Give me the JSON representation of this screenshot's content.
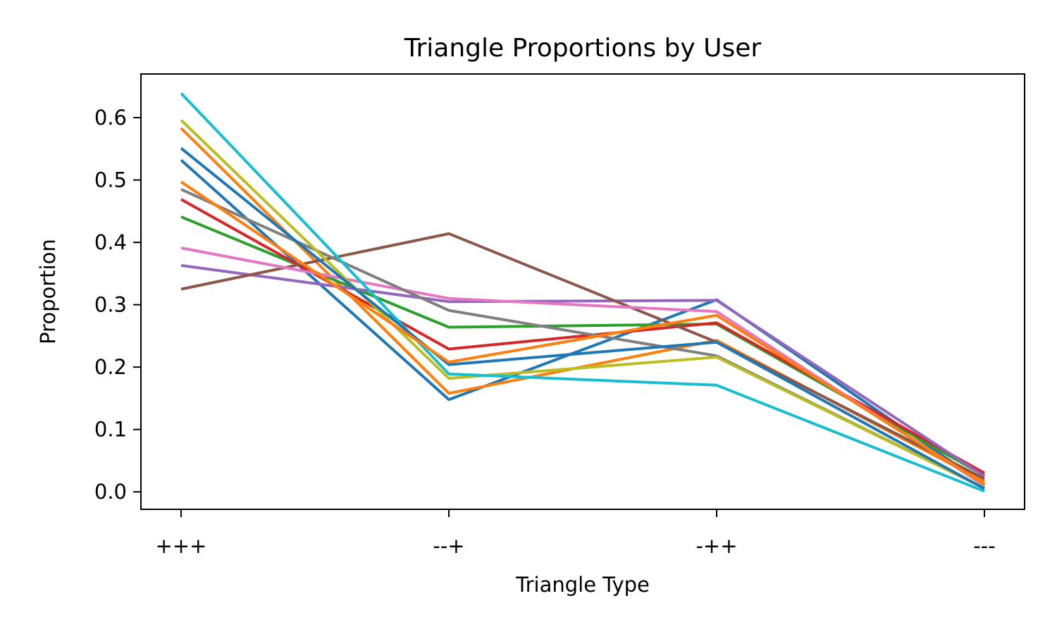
{
  "chart_data": {
    "type": "line",
    "title": "Triangle Proportions by User",
    "xlabel": "Triangle Type",
    "ylabel": "Proportion",
    "categories": [
      "+++",
      "--+",
      "-++",
      "---"
    ],
    "ylim": [
      -0.028,
      0.67
    ],
    "yticks": [
      0.0,
      0.1,
      0.2,
      0.3,
      0.4,
      0.5,
      0.6
    ],
    "ytick_labels": [
      "0.0",
      "0.1",
      "0.2",
      "0.3",
      "0.4",
      "0.5",
      "0.6"
    ],
    "grid": false,
    "legend": "none",
    "series": [
      {
        "color": "#1f77b4",
        "values": [
          0.532,
          0.148,
          0.308,
          0.012
        ]
      },
      {
        "color": "#ff7f0e",
        "values": [
          0.583,
          0.158,
          0.243,
          0.016
        ]
      },
      {
        "color": "#2ca02c",
        "values": [
          0.441,
          0.264,
          0.269,
          0.026
        ]
      },
      {
        "color": "#d62728",
        "values": [
          0.469,
          0.229,
          0.271,
          0.03
        ]
      },
      {
        "color": "#9467bd",
        "values": [
          0.363,
          0.305,
          0.307,
          0.025
        ]
      },
      {
        "color": "#8c564b",
        "values": [
          0.325,
          0.414,
          0.24,
          0.021
        ]
      },
      {
        "color": "#e377c2",
        "values": [
          0.391,
          0.31,
          0.289,
          0.01
        ]
      },
      {
        "color": "#7f7f7f",
        "values": [
          0.485,
          0.291,
          0.218,
          0.006
        ]
      },
      {
        "color": "#bcbd22",
        "values": [
          0.596,
          0.182,
          0.216,
          0.006
        ]
      },
      {
        "color": "#17becf",
        "values": [
          0.639,
          0.189,
          0.171,
          0.001
        ]
      },
      {
        "color": "#1f77b4",
        "values": [
          0.551,
          0.204,
          0.24,
          0.005
        ]
      },
      {
        "color": "#ff7f0e",
        "values": [
          0.497,
          0.208,
          0.283,
          0.012
        ]
      }
    ]
  }
}
